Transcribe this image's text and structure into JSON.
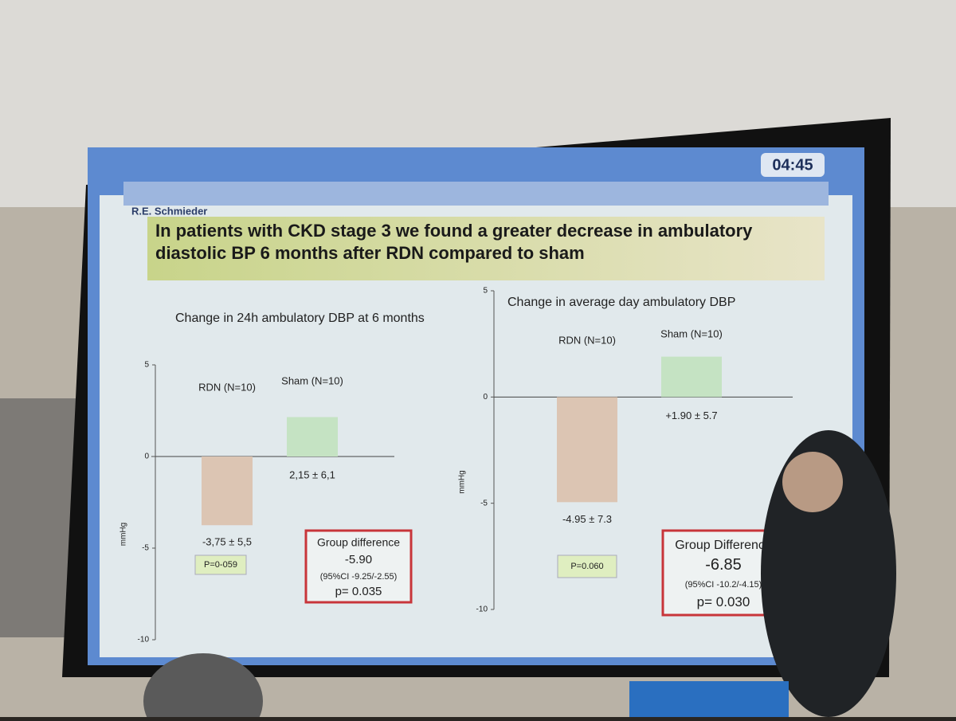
{
  "slide": {
    "presenter": "R.E. Schmieder",
    "timer": "04:45",
    "title": "In patients with CKD stage 3 we found a greater decrease in ambulatory diastolic BP 6 months after RDN compared to sham"
  },
  "chart_data": [
    {
      "type": "bar",
      "title": "Change in 24h ambulatory DBP at 6 months",
      "y_label": "mmHg",
      "categories": [
        "RDN (N=10)",
        "Sham (N=10)"
      ],
      "values": [
        -3.75,
        2.15
      ],
      "value_labels": [
        "-3,75 ± 5,5",
        "2,15 ± 6,1"
      ],
      "colors": [
        "#dcc5b3",
        "#c5e3c3"
      ],
      "ylim": [
        -10,
        5
      ],
      "yticks": [
        -10,
        -5,
        0,
        5
      ],
      "p_box": "P=0-059",
      "difference_box": {
        "title": "Group difference",
        "value": "-5.90",
        "ci": "(95%CI -9.25/-2.55)",
        "p": "p= 0.035"
      }
    },
    {
      "type": "bar",
      "title": "Change in average day ambulatory DBP",
      "y_label": "mmHg",
      "categories": [
        "RDN (N=10)",
        "Sham (N=10)"
      ],
      "values": [
        -4.95,
        1.9
      ],
      "value_labels": [
        "-4.95 ± 7.3",
        "+1.90 ± 5.7"
      ],
      "colors": [
        "#dcc5b3",
        "#c5e3c3"
      ],
      "ylim": [
        -10,
        5
      ],
      "yticks": [
        -10,
        -5,
        0,
        5
      ],
      "p_box": "P=0.060",
      "difference_box": {
        "title": "Group Difference",
        "value": "-6.85",
        "ci": "(95%CI -10.2/-4.15)",
        "p": "p= 0.030"
      }
    }
  ]
}
